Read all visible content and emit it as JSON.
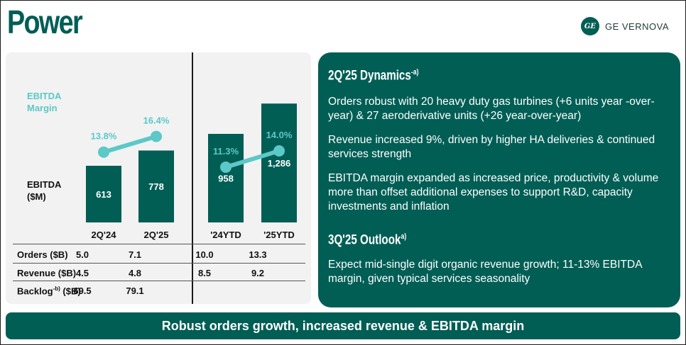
{
  "header": {
    "title": "Power",
    "brand": "GE VERNOVA"
  },
  "left": {
    "ebitda_margin_label_1": "EBITDA",
    "ebitda_margin_label_2": "Margin",
    "ebitda_label_1": "EBITDA",
    "ebitda_label_2": "($M)"
  },
  "chart_data": [
    {
      "type": "bar",
      "categories": [
        "2Q'24",
        "2Q'25"
      ],
      "series": [
        {
          "name": "EBITDA ($M)",
          "values": [
            613,
            778
          ],
          "labels": [
            "613",
            "778"
          ]
        },
        {
          "name": "EBITDA Margin",
          "values": [
            13.8,
            16.4
          ],
          "labels": [
            "13.8%",
            "16.4%"
          ]
        }
      ]
    },
    {
      "type": "bar",
      "categories": [
        "'24YTD",
        "'25YTD"
      ],
      "series": [
        {
          "name": "EBITDA ($M)",
          "values": [
            958,
            1286
          ],
          "labels": [
            "958",
            "1,286"
          ]
        },
        {
          "name": "EBITDA Margin",
          "values": [
            11.3,
            14.0
          ],
          "labels": [
            "11.3%",
            "14.0%"
          ]
        }
      ]
    }
  ],
  "table": {
    "rows": [
      {
        "label": "Orders ($B)",
        "values": [
          "5.0",
          "7.1",
          "10.0",
          "13.3"
        ]
      },
      {
        "label": "Revenue ($B)",
        "values": [
          "4.5",
          "4.8",
          "8.5",
          "9.2"
        ]
      },
      {
        "label": "Backlog",
        "sup": "-b)",
        "label_suffix": " ($B)",
        "values": [
          "69.5",
          "79.1",
          "",
          ""
        ]
      }
    ]
  },
  "dynamics": {
    "heading": "2Q'25 Dynamics",
    "heading_sup": "-a)",
    "bullets": [
      "Orders robust with 20 heavy duty gas turbines (+6 units year -over-year) & 27 aeroderivative units (+26 year-over-year)",
      "Revenue increased 9%, driven by higher HA deliveries & continued services strength",
      "EBITDA margin expanded as increased price, productivity & volume more than offset additional expenses to support R&D, capacity investments and inflation"
    ]
  },
  "outlook": {
    "heading": "3Q'25 Outlook",
    "heading_sup": "a)",
    "text": "Expect mid-single digit organic revenue growth; 11-13% EBITDA margin, given typical services seasonality"
  },
  "footer": {
    "text": "Robust orders growth, increased revenue & EBITDA margin"
  },
  "colors": {
    "brand": "#005e55",
    "accent": "#5cc8c8",
    "panel": "#f2f2f2"
  }
}
